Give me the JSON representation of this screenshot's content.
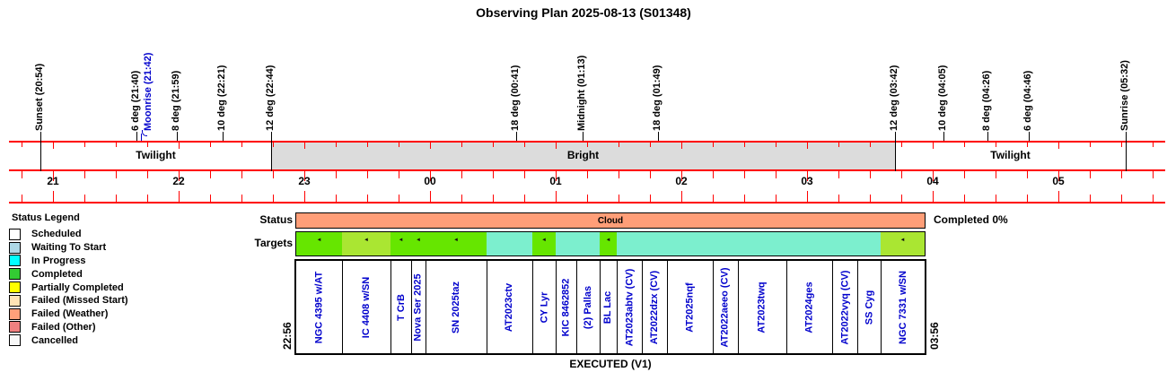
{
  "title": "Observing Plan 2025-08-13 (S01348)",
  "colors": {
    "ruler_red": "#FF0000",
    "band_gray": "#DCDCDC",
    "marker_black": "#000000",
    "moon_blue": "#0000CC",
    "target_name_blue": "#0000CC",
    "status_cloud": "#FF9E78",
    "target_green": "#66E600",
    "target_yellow_green": "#AAE632",
    "target_cyan": "#7CEFCE"
  },
  "legend": {
    "title": "Status Legend",
    "items": [
      {
        "label": "Scheduled",
        "color": "#FFFFFF"
      },
      {
        "label": "Waiting To Start",
        "color": "#ADD8E6"
      },
      {
        "label": "In Progress",
        "color": "#00FFFF"
      },
      {
        "label": "Completed",
        "color": "#33CC33"
      },
      {
        "label": "Partially Completed",
        "color": "#FFFF00"
      },
      {
        "label": "Failed (Missed Start)",
        "color": "#FFE4B5"
      },
      {
        "label": "Failed (Weather)",
        "color": "#FFA07A"
      },
      {
        "label": "Failed (Other)",
        "color": "#F08080"
      },
      {
        "label": "Cancelled",
        "color": "#F8F8F8"
      }
    ]
  },
  "rows": {
    "status_label": "Status",
    "targets_label": "Targets"
  },
  "status": {
    "completed_label": "Completed 0%"
  },
  "executed": {
    "label": "EXECUTED (V1)",
    "start_time": "22:56",
    "end_time": "03:56"
  },
  "chart_data": {
    "type": "timeline",
    "title": "Observing Plan 2025-08-13 (S01348)",
    "hours": [
      {
        "label": "21",
        "time": "21:00"
      },
      {
        "label": "22",
        "time": "22:00"
      },
      {
        "label": "23",
        "time": "23:00"
      },
      {
        "label": "00",
        "time": "00:00"
      },
      {
        "label": "01",
        "time": "01:00"
      },
      {
        "label": "02",
        "time": "02:00"
      },
      {
        "label": "03",
        "time": "03:00"
      },
      {
        "label": "04",
        "time": "04:00"
      },
      {
        "label": "05",
        "time": "05:00"
      }
    ],
    "markers": [
      {
        "label": "Sunset (20:54)",
        "time": "20:54",
        "color": "black",
        "band_line": true
      },
      {
        "label": "6 deg (21:40)",
        "time": "21:40",
        "color": "black"
      },
      {
        "label": "Moonrise (21:42)",
        "time": "21:42",
        "color": "blue",
        "shift": true
      },
      {
        "label": "8 deg (21:59)",
        "time": "21:59",
        "color": "black"
      },
      {
        "label": "10 deg (22:21)",
        "time": "22:21",
        "color": "black"
      },
      {
        "label": "12 deg (22:44)",
        "time": "22:44",
        "color": "black",
        "band_line": true
      },
      {
        "label": "18 deg (00:41)",
        "time": "00:41",
        "color": "black"
      },
      {
        "label": "Midnight (01:13)",
        "time": "01:13",
        "color": "black"
      },
      {
        "label": "18 deg (01:49)",
        "time": "01:49",
        "color": "black"
      },
      {
        "label": "12 deg (03:42)",
        "time": "03:42",
        "color": "black",
        "band_line": true
      },
      {
        "label": "10 deg (04:05)",
        "time": "04:05",
        "color": "black"
      },
      {
        "label": "8 deg (04:26)",
        "time": "04:26",
        "color": "black"
      },
      {
        "label": "6 deg (04:46)",
        "time": "04:46",
        "color": "black"
      },
      {
        "label": "Sunrise (05:32)",
        "time": "05:32",
        "color": "black",
        "band_line": true
      }
    ],
    "sky_bands": [
      {
        "label": "Twilight",
        "start": "20:54",
        "end": "22:44",
        "fill": "#FFFFFF"
      },
      {
        "label": "Bright",
        "start": "22:44",
        "end": "03:42",
        "fill": "#DCDCDC"
      },
      {
        "label": "Twilight",
        "start": "03:42",
        "end": "05:32",
        "fill": "#FFFFFF"
      }
    ],
    "status_bar": {
      "label": "Cloud",
      "start": "22:56",
      "end": "03:56"
    },
    "completed": "Completed 0%",
    "plan": {
      "label": "EXECUTED (V1)",
      "start": "22:56",
      "end": "03:56"
    },
    "targets": [
      {
        "name": "NGC 4395 w/AT",
        "start": "22:56",
        "end": "23:18",
        "color": "green",
        "moon_marker": true
      },
      {
        "name": "IC 4408 w/SN",
        "start": "23:18",
        "end": "23:41",
        "color": "yellow_green",
        "moon_marker": true
      },
      {
        "name": "T CrB",
        "start": "23:41",
        "end": "23:51",
        "color": "green",
        "moon_marker": true
      },
      {
        "name": "Nova Ser 2025",
        "start": "23:51",
        "end": "23:58",
        "color": "green",
        "moon_marker": true
      },
      {
        "name": "SN 2025taz",
        "start": "23:58",
        "end": "00:27",
        "color": "green",
        "moon_marker": true
      },
      {
        "name": "AT2023ctv",
        "start": "00:27",
        "end": "00:49",
        "color": "cyan",
        "moon_marker": false
      },
      {
        "name": "CY Lyr",
        "start": "00:49",
        "end": "01:00",
        "color": "green",
        "moon_marker": true
      },
      {
        "name": "KIC 8462852",
        "start": "01:00",
        "end": "01:10",
        "color": "cyan",
        "moon_marker": false
      },
      {
        "name": "(2) Pallas",
        "start": "01:10",
        "end": "01:21",
        "color": "cyan",
        "moon_marker": false
      },
      {
        "name": "BL Lac",
        "start": "01:21",
        "end": "01:29",
        "color": "green",
        "moon_marker": true
      },
      {
        "name": "AT2023abtv (CV)",
        "start": "01:29",
        "end": "01:41",
        "color": "cyan",
        "moon_marker": false
      },
      {
        "name": "AT2022dzx (CV)",
        "start": "01:41",
        "end": "01:53",
        "color": "cyan",
        "moon_marker": false
      },
      {
        "name": "AT2025nqf",
        "start": "01:53",
        "end": "02:15",
        "color": "cyan",
        "moon_marker": false
      },
      {
        "name": "AT2022aeeo (CV)",
        "start": "02:15",
        "end": "02:27",
        "color": "cyan",
        "moon_marker": false
      },
      {
        "name": "AT2023twq",
        "start": "02:27",
        "end": "02:50",
        "color": "cyan",
        "moon_marker": false
      },
      {
        "name": "AT2024ges",
        "start": "02:50",
        "end": "03:12",
        "color": "cyan",
        "moon_marker": false
      },
      {
        "name": "AT2022vyq (CV)",
        "start": "03:12",
        "end": "03:24",
        "color": "cyan",
        "moon_marker": false
      },
      {
        "name": "SS Cyg",
        "start": "03:24",
        "end": "03:35",
        "color": "cyan",
        "moon_marker": false
      },
      {
        "name": "NGC 7331 w/SN",
        "start": "03:35",
        "end": "03:56",
        "color": "yellow_green",
        "moon_marker": true
      }
    ]
  }
}
